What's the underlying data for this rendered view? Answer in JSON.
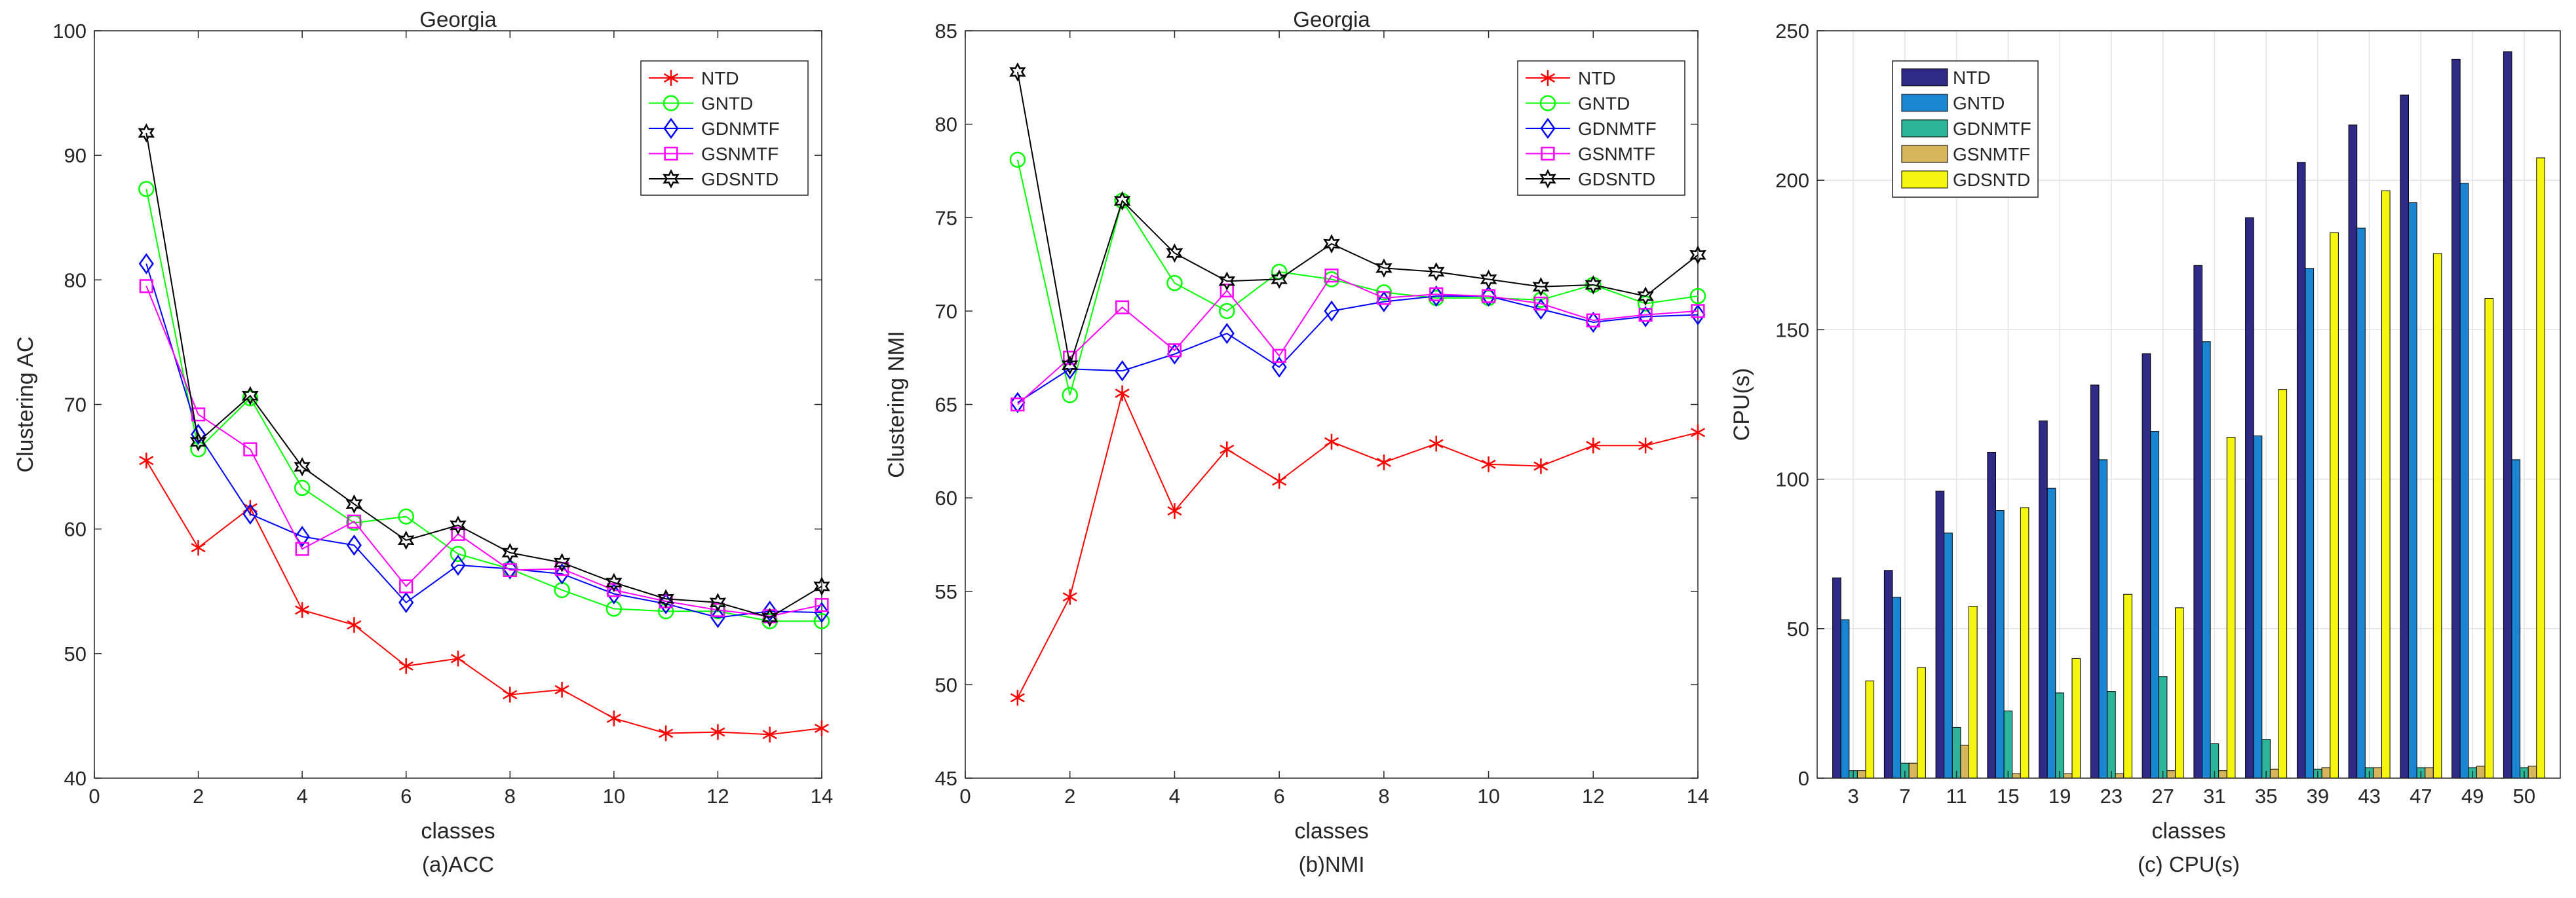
{
  "chart_data": [
    {
      "type": "line",
      "title": "Georgia",
      "xlabel": "classes",
      "ylabel": "Clustering AC",
      "caption": "(a)ACC",
      "xlim": [
        0,
        14
      ],
      "ylim": [
        40,
        100
      ],
      "xticks": [
        0,
        2,
        4,
        6,
        8,
        10,
        12,
        14
      ],
      "yticks": [
        40,
        50,
        60,
        70,
        80,
        90,
        100
      ],
      "grid": false,
      "legend_position": "top-right",
      "x": [
        1,
        2,
        3,
        4,
        5,
        6,
        7,
        8,
        9,
        10,
        11,
        12,
        13,
        14
      ],
      "series": [
        {
          "name": "NTD",
          "color": "#ff0000",
          "marker": "asterisk",
          "values": [
            65.5,
            58.5,
            61.7,
            53.5,
            52.3,
            49.0,
            49.6,
            46.7,
            47.1,
            44.8,
            43.6,
            43.7,
            43.5,
            44.0
          ]
        },
        {
          "name": "GNTD",
          "color": "#00ff00",
          "marker": "circle",
          "values": [
            87.3,
            66.4,
            70.5,
            63.3,
            60.5,
            61.0,
            58.0,
            56.8,
            55.1,
            53.6,
            53.4,
            53.4,
            52.6,
            52.6
          ]
        },
        {
          "name": "GDNMTF",
          "color": "#0000ff",
          "marker": "diamond",
          "values": [
            81.3,
            67.6,
            61.2,
            59.4,
            58.7,
            54.1,
            57.1,
            56.8,
            56.4,
            54.8,
            54.0,
            52.9,
            53.4,
            53.3
          ]
        },
        {
          "name": "GSNMTF",
          "color": "#ff00ff",
          "marker": "square",
          "values": [
            79.5,
            69.2,
            66.4,
            58.4,
            60.6,
            55.4,
            59.6,
            56.7,
            56.8,
            55.1,
            54.2,
            53.5,
            53.0,
            53.9
          ]
        },
        {
          "name": "GDSNTD",
          "color": "#000000",
          "marker": "hexagram",
          "values": [
            91.8,
            67.0,
            70.7,
            65.0,
            62.0,
            59.1,
            60.3,
            58.1,
            57.3,
            55.7,
            54.4,
            54.1,
            52.9,
            55.4
          ]
        }
      ]
    },
    {
      "type": "line",
      "title": "Georgia",
      "xlabel": "classes",
      "ylabel": "Clustering NMI",
      "caption": "(b)NMI",
      "xlim": [
        0,
        14
      ],
      "ylim": [
        45,
        85
      ],
      "xticks": [
        0,
        2,
        4,
        6,
        8,
        10,
        12,
        14
      ],
      "yticks": [
        45,
        50,
        55,
        60,
        65,
        70,
        75,
        80,
        85
      ],
      "grid": false,
      "legend_position": "top-right",
      "x": [
        1,
        2,
        3,
        4,
        5,
        6,
        7,
        8,
        9,
        10,
        11,
        12,
        13,
        14
      ],
      "series": [
        {
          "name": "NTD",
          "color": "#ff0000",
          "marker": "asterisk",
          "values": [
            49.3,
            54.7,
            65.6,
            59.3,
            62.6,
            60.9,
            63.0,
            61.9,
            62.9,
            61.8,
            61.7,
            62.8,
            62.8,
            63.5
          ]
        },
        {
          "name": "GNTD",
          "color": "#00ff00",
          "marker": "circle",
          "values": [
            78.1,
            65.5,
            75.9,
            71.5,
            70.0,
            72.1,
            71.7,
            71.0,
            70.7,
            70.7,
            70.6,
            71.4,
            70.4,
            70.8
          ]
        },
        {
          "name": "GDNMTF",
          "color": "#0000ff",
          "marker": "diamond",
          "values": [
            65.1,
            66.9,
            66.8,
            67.7,
            68.8,
            67.0,
            70.0,
            70.5,
            70.8,
            70.8,
            70.1,
            69.4,
            69.7,
            69.8
          ]
        },
        {
          "name": "GSNMTF",
          "color": "#ff00ff",
          "marker": "square",
          "values": [
            65.0,
            67.5,
            70.2,
            67.9,
            71.1,
            67.6,
            71.9,
            70.7,
            70.9,
            70.8,
            70.4,
            69.5,
            69.8,
            70.0
          ]
        },
        {
          "name": "GDSNTD",
          "color": "#000000",
          "marker": "hexagram",
          "values": [
            82.8,
            67.1,
            75.9,
            73.1,
            71.6,
            71.7,
            73.6,
            72.3,
            72.1,
            71.7,
            71.3,
            71.4,
            70.8,
            73.0
          ]
        }
      ]
    },
    {
      "type": "bar",
      "title": "",
      "xlabel": "classes",
      "ylabel": "CPU(s)",
      "caption": "(c) CPU(s)",
      "ylim": [
        0,
        250
      ],
      "yticks": [
        0,
        50,
        100,
        150,
        200,
        250
      ],
      "grid": true,
      "legend_position": "top-left",
      "categories": [
        "3",
        "7",
        "11",
        "15",
        "19",
        "23",
        "27",
        "31",
        "35",
        "39",
        "43",
        "47",
        "49",
        "50"
      ],
      "series": [
        {
          "name": "NTD",
          "color": "#2e2a86",
          "values": [
            67,
            69.5,
            96,
            109,
            119.5,
            131.5,
            142,
            171.5,
            187.5,
            206,
            218.5,
            228.5,
            240.5,
            243
          ]
        },
        {
          "name": "GNTD",
          "color": "#1a86d3",
          "values": [
            53,
            60.5,
            82,
            89.5,
            97,
            106.5,
            116,
            146,
            114.5,
            170.5,
            184,
            192.5,
            199,
            106.5
          ]
        },
        {
          "name": "GDNMTF",
          "color": "#2db59c",
          "values": [
            2.5,
            5,
            17,
            22.5,
            28.5,
            29,
            34,
            11.5,
            13,
            3,
            3.5,
            3.5,
            3.5,
            3.5
          ]
        },
        {
          "name": "GSNMTF",
          "color": "#d6b55c",
          "values": [
            2.5,
            5,
            11,
            1.5,
            1.5,
            1.5,
            2.5,
            2.5,
            3,
            3.5,
            3.5,
            3.5,
            4,
            4
          ]
        },
        {
          "name": "GDSNTD",
          "color": "#f5f50f",
          "values": [
            32.5,
            37,
            57.5,
            90.5,
            40,
            61.5,
            57,
            114,
            130,
            182.5,
            196.5,
            175.5,
            160.5,
            207.5
          ]
        }
      ]
    }
  ]
}
